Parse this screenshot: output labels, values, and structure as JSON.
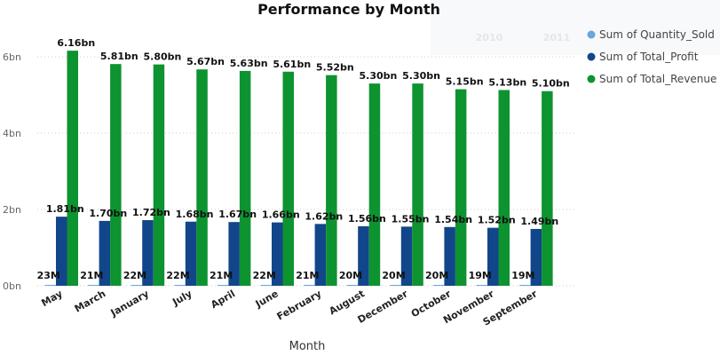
{
  "background_years": [
    "2010",
    "2011"
  ],
  "chart_data": {
    "type": "bar",
    "title": "Performance by Month",
    "xlabel": "Month",
    "ylabel": "",
    "ylim": [
      0,
      6.5
    ],
    "y_ticks": [
      {
        "value": 0,
        "label": "0bn"
      },
      {
        "value": 2,
        "label": "2bn"
      },
      {
        "value": 4,
        "label": "4bn"
      },
      {
        "value": 6,
        "label": "6bn"
      }
    ],
    "grid": true,
    "legend_position": "top-right",
    "categories": [
      "May",
      "March",
      "January",
      "July",
      "April",
      "June",
      "February",
      "August",
      "December",
      "October",
      "November",
      "September"
    ],
    "series": [
      {
        "name": "Sum of Quantity_Sold",
        "color": "#6aa6dc",
        "values": [
          0.023,
          0.021,
          0.022,
          0.022,
          0.021,
          0.022,
          0.021,
          0.02,
          0.02,
          0.02,
          0.019,
          0.019
        ],
        "labels": [
          "23M",
          "21M",
          "22M",
          "22M",
          "21M",
          "22M",
          "21M",
          "20M",
          "20M",
          "20M",
          "19M",
          "19M"
        ]
      },
      {
        "name": "Sum of Total_Profit",
        "color": "#12468a",
        "values": [
          1.81,
          1.7,
          1.72,
          1.68,
          1.67,
          1.66,
          1.62,
          1.56,
          1.55,
          1.54,
          1.52,
          1.49
        ],
        "labels": [
          "1.81bn",
          "1.70bn",
          "1.72bn",
          "1.68bn",
          "1.67bn",
          "1.66bn",
          "1.62bn",
          "1.56bn",
          "1.55bn",
          "1.54bn",
          "1.52bn",
          "1.49bn"
        ]
      },
      {
        "name": "Sum of Total_Revenue",
        "color": "#0d9330",
        "values": [
          6.16,
          5.81,
          5.8,
          5.67,
          5.63,
          5.61,
          5.52,
          5.3,
          5.3,
          5.15,
          5.13,
          5.1
        ],
        "labels": [
          "6.16bn",
          "5.81bn",
          "5.80bn",
          "5.67bn",
          "5.63bn",
          "5.61bn",
          "5.52bn",
          "5.30bn",
          "5.30bn",
          "5.15bn",
          "5.13bn",
          "5.10bn"
        ]
      }
    ]
  }
}
